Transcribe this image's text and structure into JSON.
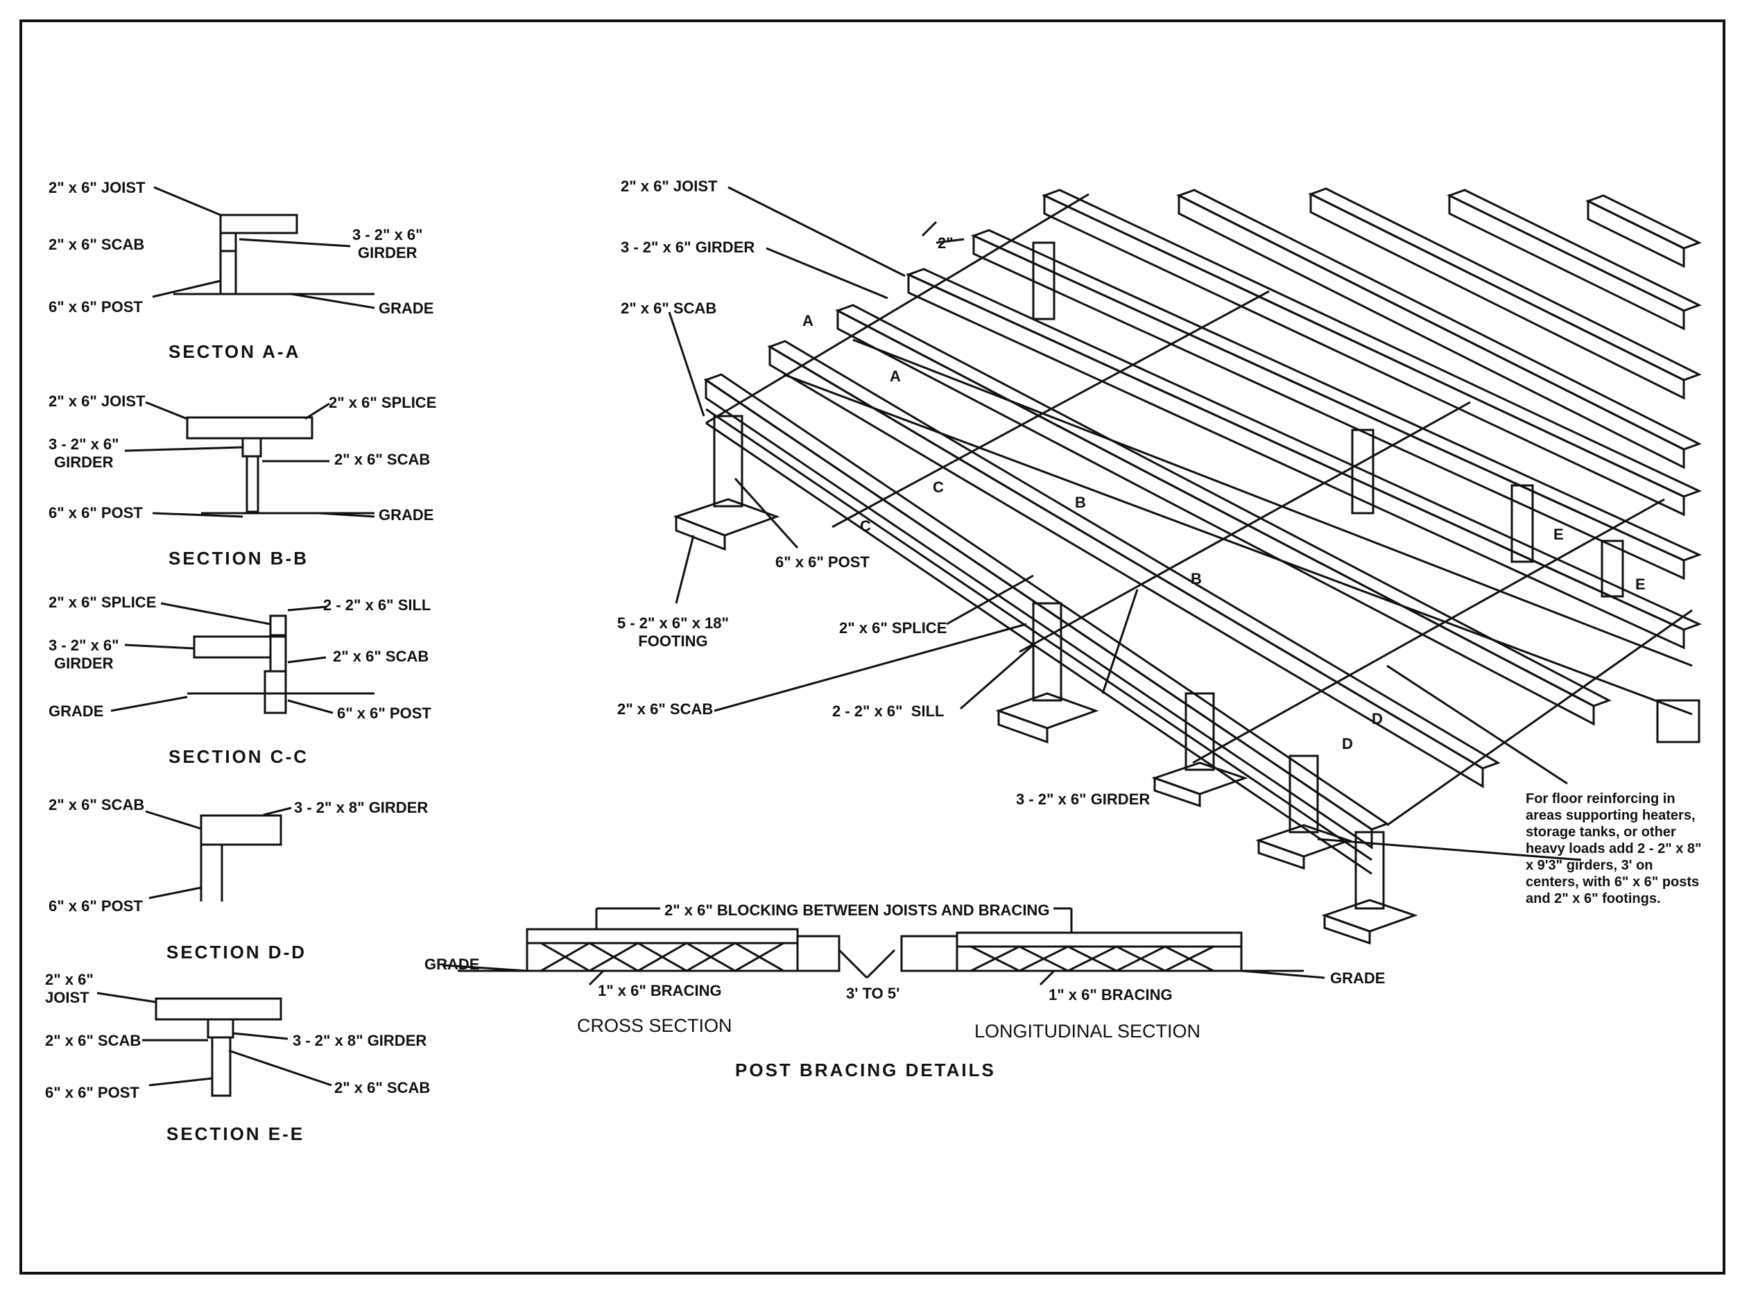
{
  "sections": {
    "a": {
      "title": "SECTON A-A",
      "joist": "2\" x 6\" JOIST",
      "scab": "2\" x 6\" SCAB",
      "post": "6\" x 6\" POST",
      "girder": "3 - 2\" x 6\"\nGIRDER",
      "grade": "GRADE"
    },
    "b": {
      "title": "SECTION B-B",
      "joist": "2\" x 6\" JOIST",
      "splice": "2\" x 6\" SPLICE",
      "girder": "3 - 2\" x 6\"\nGIRDER",
      "scab": "2\" x 6\" SCAB",
      "post": "6\" x 6\" POST",
      "grade": "GRADE"
    },
    "c": {
      "title": "SECTION C-C",
      "splice": "2\" x 6\" SPLICE",
      "sill": "2 - 2\" x 6\" SILL",
      "girder": "3 - 2\" x 6\"\nGIRDER",
      "scab": "2\" x 6\" SCAB",
      "grade": "GRADE",
      "post": "6\" x 6\" POST"
    },
    "d": {
      "title": "SECTION D-D",
      "scab": "2\" x 6\" SCAB",
      "girder": "3 - 2\" x 8\" GIRDER",
      "post": "6\" x 6\" POST"
    },
    "e": {
      "title": "SECTION E-E",
      "joist": "2\" x 6\"\nJOIST",
      "scab_left": "2\" x 6\" SCAB",
      "girder": "3 - 2\" x 8\" GIRDER",
      "post": "6\" x 6\" POST",
      "scab_right": "2\" x 6\" SCAB"
    }
  },
  "main": {
    "joist": "2\" x 6\" JOIST",
    "girder_top": "3 - 2\" x 6\" GIRDER",
    "scab_top": "2\" x 6\" SCAB",
    "post": "6\" x 6\" POST",
    "footing": "5 - 2\" x 6\" x 18\"\nFOOTING",
    "splice": "2\" x 6\" SPLICE",
    "scab_bottom": "2\" x 6\" SCAB",
    "sill": "2 - 2\" x 6\"  SILL",
    "girder_bottom": "3 - 2\" x 6\" GIRDER",
    "spacing": "2\"",
    "markers": [
      "A",
      "A",
      "C",
      "C",
      "B",
      "B",
      "E",
      "E",
      "D",
      "D"
    ],
    "note": "For floor reinforcing in areas supporting heaters, storage tanks, or other heavy loads add 2 - 2\" x 8\" x 9'3\" girders, 3' on centers, with 6\" x 6\" posts and 2\" x 6\" footings."
  },
  "bracing": {
    "title": "POST BRACING DETAILS",
    "blocking": "2\" x 6\" BLOCKING BETWEEN JOISTS AND BRACING",
    "grade_left": "GRADE",
    "grade_right": "GRADE",
    "bracing_left": "1\" x 6\" BRACING",
    "bracing_right": "1\" x 6\" BRACING",
    "spacing": "3' TO 5'",
    "cross": "CROSS SECTION",
    "longitudinal": "LONGITUDINAL SECTION"
  }
}
